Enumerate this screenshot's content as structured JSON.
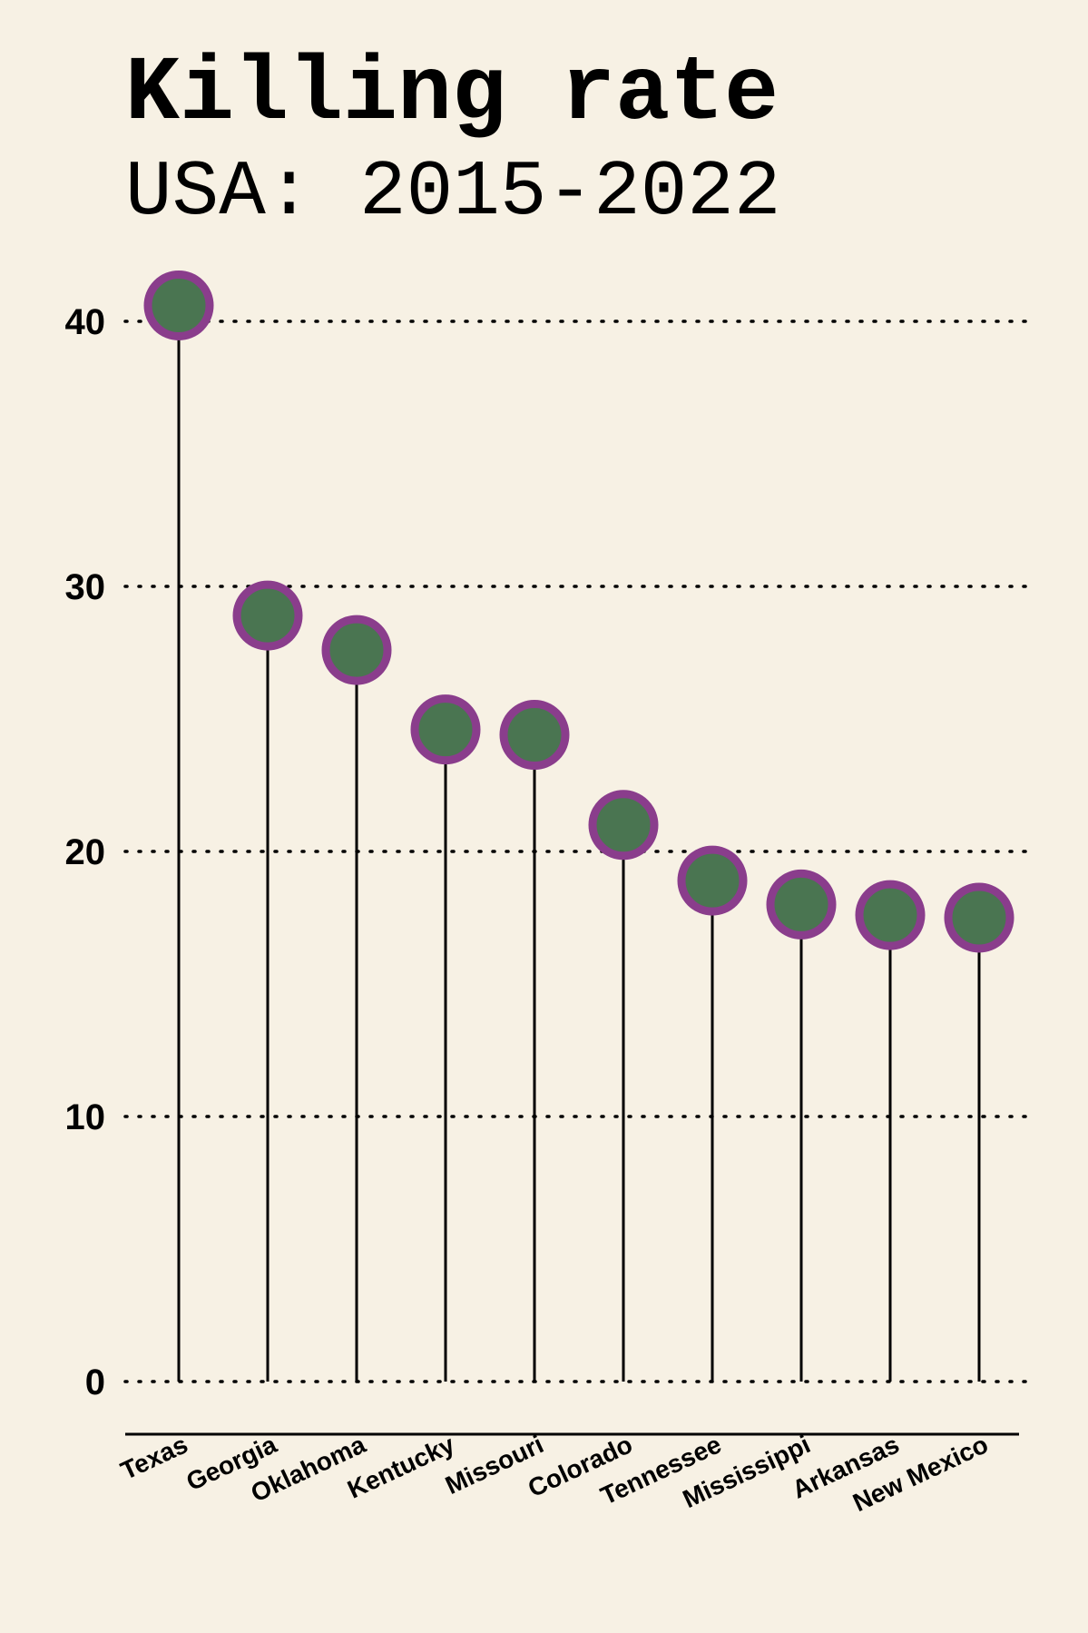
{
  "chart_data": {
    "type": "lollipop",
    "title": "Killing rate",
    "subtitle": "USA: 2015-2022",
    "categories": [
      "Texas",
      "Georgia",
      "Oklahoma",
      "Kentucky",
      "Missouri",
      "Colorado",
      "Tennessee",
      "Mississippi",
      "Arkansas",
      "New Mexico"
    ],
    "values": [
      40.6,
      28.9,
      27.6,
      24.6,
      24.4,
      21.0,
      18.9,
      18.0,
      17.6,
      17.5
    ],
    "ylim": [
      -2,
      42
    ],
    "yticks": [
      "0",
      "10",
      "20",
      "30",
      "40"
    ],
    "grid": "horizontal dotted",
    "xlabel": "",
    "ylabel": "",
    "colors": {
      "background": "#f7f1e4",
      "marker_fill": "#4a7551",
      "marker_edge": "#8a3d8c",
      "stem": "#000000",
      "grid": "#000000"
    }
  }
}
